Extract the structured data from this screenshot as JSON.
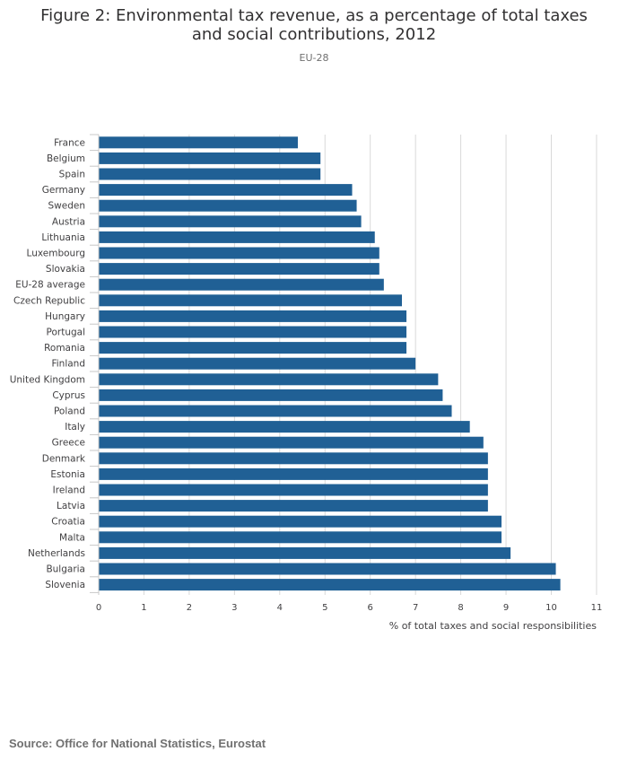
{
  "header": {
    "title": "Figure 2: Environmental tax revenue, as a percentage of total taxes and social contributions, 2012",
    "subtitle": "EU-28"
  },
  "footer": {
    "source": "Source: Office for National Statistics, Eurostat"
  },
  "colors": {
    "bar": "#206095",
    "grid": "#d9d9d9",
    "axis": "#c8c8c8"
  },
  "chart_data": {
    "type": "bar",
    "orientation": "horizontal",
    "title": "Figure 2: Environmental tax revenue, as a percentage of total taxes and social contributions, 2012",
    "subtitle": "EU-28",
    "xlabel": "% of total taxes and social responsibilities",
    "ylabel": "",
    "xlim": [
      0,
      11
    ],
    "x_ticks": [
      0,
      1,
      2,
      3,
      4,
      5,
      6,
      7,
      8,
      9,
      10,
      11
    ],
    "grid": true,
    "legend": "none",
    "categories": [
      "France",
      "Belgium",
      "Spain",
      "Germany",
      "Sweden",
      "Austria",
      "Lithuania",
      "Luxembourg",
      "Slovakia",
      "EU-28 average",
      "Czech Republic",
      "Hungary",
      "Portugal",
      "Romania",
      "Finland",
      "United Kingdom",
      "Cyprus",
      "Poland",
      "Italy",
      "Greece",
      "Denmark",
      "Estonia",
      "Ireland",
      "Latvia",
      "Croatia",
      "Malta",
      "Netherlands",
      "Bulgaria",
      "Slovenia"
    ],
    "values": [
      4.4,
      4.9,
      4.9,
      5.6,
      5.7,
      5.8,
      6.1,
      6.2,
      6.2,
      6.3,
      6.7,
      6.8,
      6.8,
      6.8,
      7.0,
      7.5,
      7.6,
      7.8,
      8.2,
      8.5,
      8.6,
      8.6,
      8.6,
      8.6,
      8.9,
      8.9,
      9.1,
      10.1,
      10.2
    ]
  }
}
